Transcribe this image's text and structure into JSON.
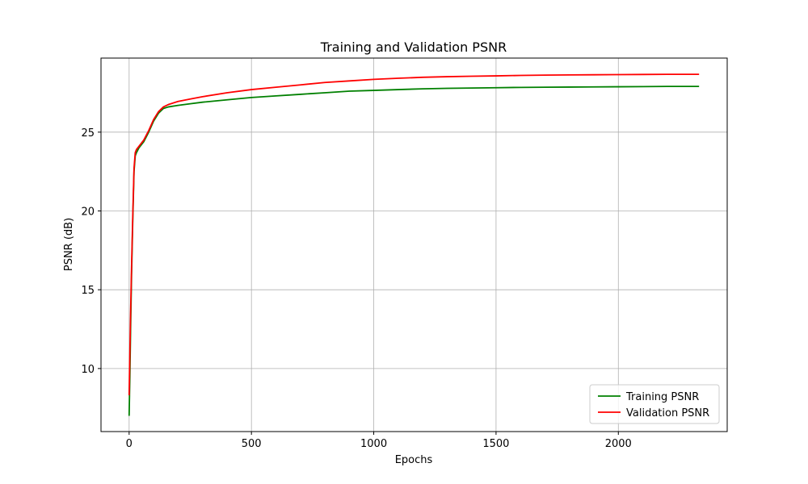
{
  "chart_data": {
    "type": "line",
    "title": "Training and Validation PSNR",
    "xlabel": "Epochs",
    "ylabel": "PSNR (dB)",
    "xlim": [
      -115,
      2445
    ],
    "ylim": [
      6.0,
      29.7
    ],
    "x_ticks": [
      0,
      500,
      1000,
      1500,
      2000
    ],
    "y_ticks": [
      10,
      15,
      20,
      25
    ],
    "grid": true,
    "legend_position": "lower-right",
    "series": [
      {
        "name": "Training PSNR",
        "color": "#008000",
        "points": [
          [
            0,
            7.0
          ],
          [
            3,
            9.5
          ],
          [
            6,
            12.5
          ],
          [
            10,
            16.0
          ],
          [
            15,
            19.5
          ],
          [
            20,
            22.5
          ],
          [
            25,
            23.5
          ],
          [
            30,
            23.7
          ],
          [
            40,
            24.0
          ],
          [
            60,
            24.4
          ],
          [
            80,
            25.0
          ],
          [
            100,
            25.7
          ],
          [
            120,
            26.2
          ],
          [
            140,
            26.5
          ],
          [
            160,
            26.6
          ],
          [
            200,
            26.7
          ],
          [
            250,
            26.8
          ],
          [
            300,
            26.9
          ],
          [
            400,
            27.05
          ],
          [
            500,
            27.2
          ],
          [
            600,
            27.3
          ],
          [
            700,
            27.4
          ],
          [
            800,
            27.5
          ],
          [
            900,
            27.6
          ],
          [
            1000,
            27.65
          ],
          [
            1100,
            27.7
          ],
          [
            1200,
            27.75
          ],
          [
            1300,
            27.78
          ],
          [
            1400,
            27.8
          ],
          [
            1500,
            27.82
          ],
          [
            1600,
            27.84
          ],
          [
            1700,
            27.85
          ],
          [
            1800,
            27.86
          ],
          [
            1900,
            27.87
          ],
          [
            2000,
            27.88
          ],
          [
            2100,
            27.89
          ],
          [
            2200,
            27.9
          ],
          [
            2330,
            27.9
          ]
        ]
      },
      {
        "name": "Validation PSNR",
        "color": "#ff0000",
        "points": [
          [
            0,
            8.3
          ],
          [
            3,
            11.0
          ],
          [
            6,
            13.5
          ],
          [
            10,
            16.5
          ],
          [
            15,
            19.8
          ],
          [
            20,
            22.7
          ],
          [
            25,
            23.7
          ],
          [
            30,
            23.9
          ],
          [
            40,
            24.1
          ],
          [
            60,
            24.5
          ],
          [
            80,
            25.1
          ],
          [
            100,
            25.8
          ],
          [
            120,
            26.3
          ],
          [
            140,
            26.6
          ],
          [
            160,
            26.75
          ],
          [
            200,
            26.95
          ],
          [
            250,
            27.1
          ],
          [
            300,
            27.25
          ],
          [
            400,
            27.5
          ],
          [
            500,
            27.7
          ],
          [
            600,
            27.85
          ],
          [
            700,
            28.0
          ],
          [
            800,
            28.15
          ],
          [
            900,
            28.25
          ],
          [
            1000,
            28.35
          ],
          [
            1100,
            28.42
          ],
          [
            1200,
            28.48
          ],
          [
            1300,
            28.52
          ],
          [
            1400,
            28.55
          ],
          [
            1500,
            28.57
          ],
          [
            1600,
            28.6
          ],
          [
            1700,
            28.62
          ],
          [
            1800,
            28.63
          ],
          [
            1900,
            28.64
          ],
          [
            2000,
            28.65
          ],
          [
            2100,
            28.66
          ],
          [
            2200,
            28.67
          ],
          [
            2330,
            28.67
          ]
        ]
      }
    ]
  }
}
